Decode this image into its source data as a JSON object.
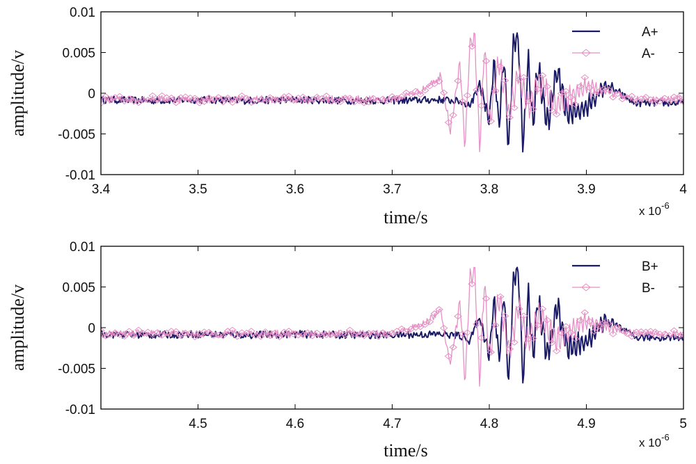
{
  "chart_data": [
    {
      "type": "line",
      "xlabel": "time/s",
      "ylabel": "amplitude/v",
      "x_multiplier": "x 10",
      "x_exponent": "-6",
      "xlim": [
        3.4,
        4.0
      ],
      "ylim": [
        -0.01,
        0.01
      ],
      "xticks": [
        "3.4",
        "3.5",
        "3.6",
        "3.7",
        "3.8",
        "3.9",
        "4"
      ],
      "xtick_values": [
        3.4,
        3.5,
        3.6,
        3.7,
        3.8,
        3.9,
        4.0
      ],
      "yticks": [
        "0.01",
        "0.005",
        "0",
        "-0.005",
        "-0.01"
      ],
      "ytick_values": [
        0.01,
        0.005,
        0,
        -0.005,
        -0.01
      ],
      "grid": false,
      "legend_position": "top-right",
      "series": [
        {
          "name": "A+",
          "color": "#1a1a66",
          "marker": "none",
          "x": [
            3.4,
            3.45,
            3.5,
            3.55,
            3.6,
            3.65,
            3.7,
            3.75,
            3.77,
            3.78,
            3.79,
            3.8,
            3.805,
            3.81,
            3.815,
            3.82,
            3.825,
            3.83,
            3.835,
            3.84,
            3.845,
            3.85,
            3.86,
            3.87,
            3.88,
            3.9,
            3.92,
            3.95,
            4.0
          ],
          "y": [
            -0.0008,
            -0.0009,
            -0.0008,
            -0.0009,
            -0.0008,
            -0.0009,
            -0.0009,
            -0.0008,
            -0.001,
            -0.0015,
            0.0012,
            -0.0032,
            0.0038,
            -0.0045,
            0.0045,
            -0.007,
            0.0062,
            0.0071,
            -0.007,
            0.0045,
            -0.004,
            0.0035,
            -0.0038,
            0.0028,
            -0.0025,
            -0.0018,
            0.001,
            -0.0012,
            -0.0012
          ]
        },
        {
          "name": "A-",
          "color": "#e58fc4",
          "marker": "diamond",
          "x": [
            3.4,
            3.45,
            3.5,
            3.55,
            3.6,
            3.65,
            3.7,
            3.73,
            3.75,
            3.76,
            3.77,
            3.775,
            3.78,
            3.785,
            3.79,
            3.795,
            3.8,
            3.81,
            3.82,
            3.83,
            3.84,
            3.85,
            3.87,
            3.9,
            3.95,
            4.0
          ],
          "y": [
            -0.0008,
            -0.0007,
            -0.0008,
            -0.0007,
            -0.0008,
            -0.0007,
            -0.0008,
            0.0003,
            0.002,
            -0.0045,
            0.0035,
            -0.007,
            0.006,
            0.0072,
            -0.007,
            0.0062,
            -0.004,
            0.004,
            -0.003,
            0.0025,
            -0.002,
            0.0015,
            -0.0015,
            0.0008,
            -0.0008,
            -0.0008
          ]
        }
      ]
    },
    {
      "type": "line",
      "xlabel": "time/s",
      "ylabel": "amplitude/v",
      "x_multiplier": "x 10",
      "x_exponent": "-6",
      "xlim": [
        4.4,
        5.0
      ],
      "ylim": [
        -0.01,
        0.01
      ],
      "xticks": [
        "4.5",
        "4.6",
        "4.7",
        "4.8",
        "4.9",
        "5"
      ],
      "xtick_values": [
        4.5,
        4.6,
        4.7,
        4.8,
        4.9,
        5.0
      ],
      "yticks": [
        "0.01",
        "0.005",
        "0",
        "-0.005",
        "-0.01"
      ],
      "ytick_values": [
        0.01,
        0.005,
        0,
        -0.005,
        -0.01
      ],
      "grid": false,
      "legend_position": "top-right",
      "series": [
        {
          "name": "B+",
          "color": "#1a1a66",
          "marker": "none",
          "x": [
            4.4,
            4.45,
            4.5,
            4.55,
            4.6,
            4.65,
            4.7,
            4.75,
            4.77,
            4.78,
            4.79,
            4.8,
            4.805,
            4.81,
            4.815,
            4.82,
            4.825,
            4.83,
            4.835,
            4.84,
            4.845,
            4.85,
            4.86,
            4.87,
            4.88,
            4.9,
            4.92,
            4.95,
            5.0
          ],
          "y": [
            -0.0008,
            -0.0009,
            -0.0008,
            -0.0009,
            -0.0008,
            -0.0009,
            -0.0009,
            -0.0008,
            -0.001,
            -0.0015,
            0.0012,
            -0.0032,
            0.0038,
            -0.0045,
            0.0045,
            -0.007,
            0.0062,
            0.0071,
            -0.007,
            0.0045,
            -0.004,
            0.0035,
            -0.0038,
            0.0028,
            -0.0025,
            -0.0018,
            0.001,
            -0.0012,
            -0.0012
          ]
        },
        {
          "name": "B-",
          "color": "#e58fc4",
          "marker": "diamond",
          "x": [
            4.4,
            4.45,
            4.5,
            4.55,
            4.6,
            4.65,
            4.7,
            4.73,
            4.75,
            4.76,
            4.77,
            4.775,
            4.78,
            4.785,
            4.79,
            4.795,
            4.8,
            4.81,
            4.82,
            4.83,
            4.84,
            4.85,
            4.87,
            4.9,
            4.95,
            5.0
          ],
          "y": [
            -0.0008,
            -0.0007,
            -0.0008,
            -0.0007,
            -0.0008,
            -0.0007,
            -0.0008,
            0.0003,
            0.002,
            -0.0045,
            0.0035,
            -0.007,
            0.006,
            0.0072,
            -0.007,
            0.0062,
            -0.004,
            0.004,
            -0.003,
            0.0025,
            -0.002,
            0.0015,
            -0.0015,
            0.0008,
            -0.0008,
            -0.0008
          ]
        }
      ]
    }
  ]
}
